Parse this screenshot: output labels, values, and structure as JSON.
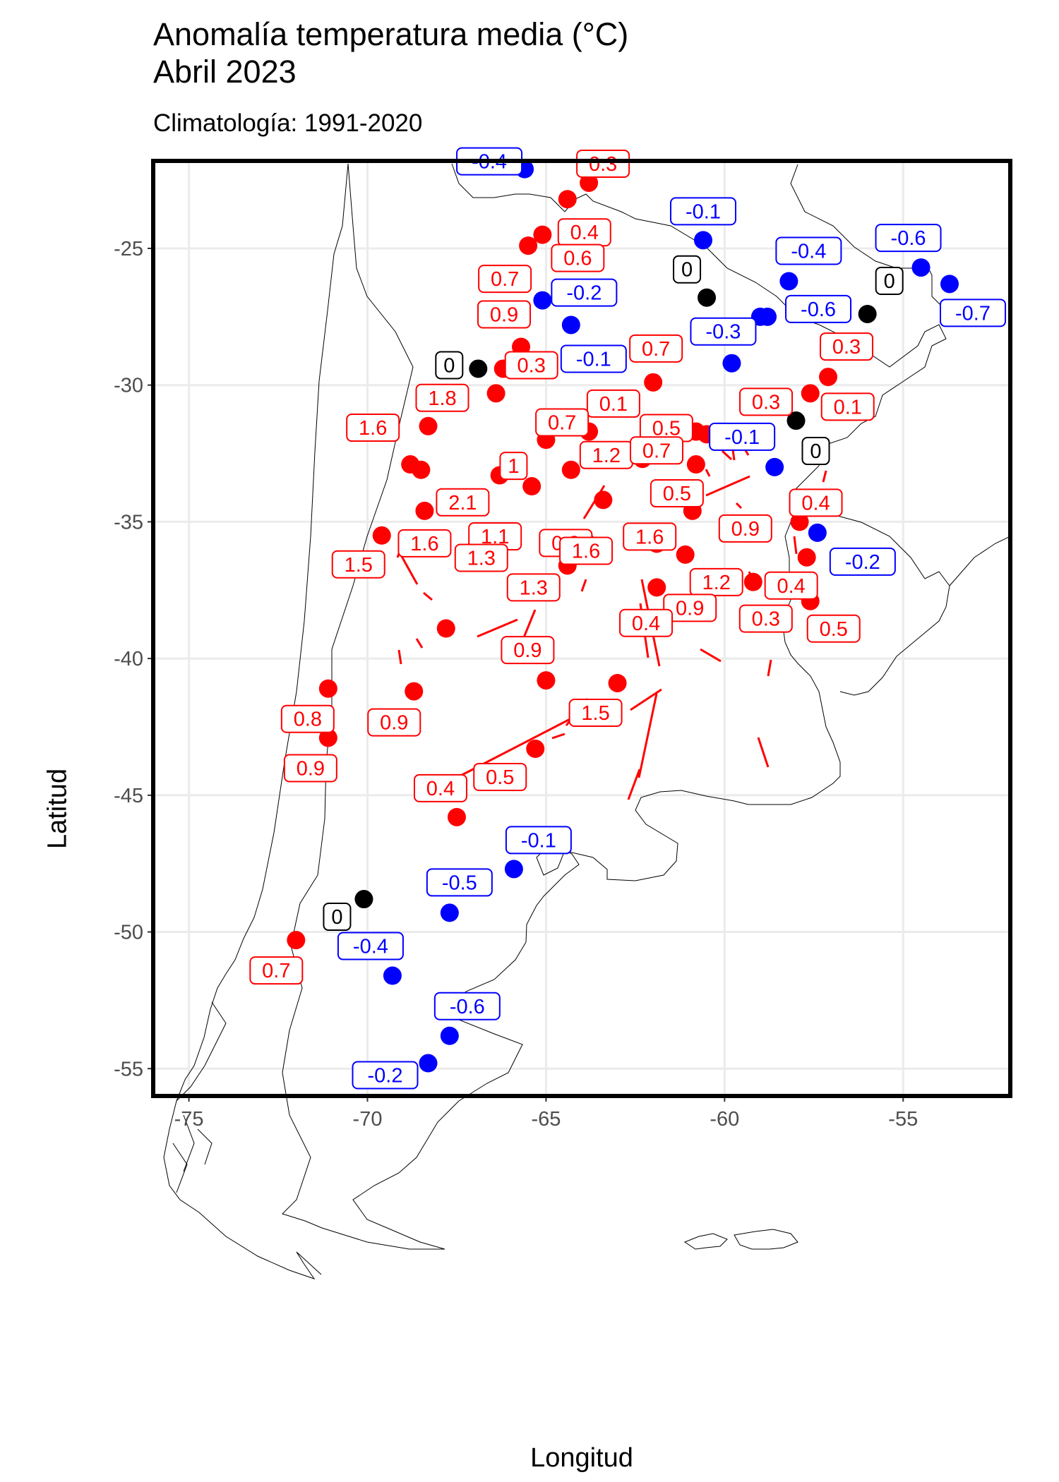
{
  "title_line1": "Anomalía temperatura media (°C)",
  "title_line2": "Abril 2023",
  "subtitle": "Climatología: 1991-2020",
  "xlabel": "Longitud",
  "ylabel": "Latitud",
  "colors": {
    "positive": "#ff0000",
    "negative": "#0000ff",
    "zero": "#000000",
    "grid": "#ebebeb",
    "coast": "#000000"
  },
  "chart_data": {
    "type": "scatter",
    "xlim": [
      -76,
      -52
    ],
    "ylim": [
      -56,
      -21.8
    ],
    "x_ticks": [
      -75,
      -70,
      -65,
      -60,
      -55
    ],
    "y_ticks": [
      -25,
      -30,
      -35,
      -40,
      -45,
      -50,
      -55
    ],
    "x_tick_labels": [
      "-75",
      "-70",
      "-65",
      "-60",
      "-55"
    ],
    "y_tick_labels": [
      "-25",
      "-30",
      "-35",
      "-40",
      "-45",
      "-50",
      "-55"
    ],
    "grid": true,
    "stations": [
      {
        "lon": -65.6,
        "lat": -22.1,
        "label": "-0.4",
        "value": -0.4
      },
      {
        "lon": -63.8,
        "lat": -22.6,
        "label": "0.3",
        "value": 0.3
      },
      {
        "lon": -64.4,
        "lat": -23.2,
        "label": "0.4",
        "value": 0.4
      },
      {
        "lon": -65.5,
        "lat": -24.9,
        "label": "0.7",
        "value": 0.7
      },
      {
        "lon": -65.1,
        "lat": -24.5,
        "label": "0.6",
        "value": 0.6
      },
      {
        "lon": -60.6,
        "lat": -24.7,
        "label": "-0.1",
        "value": -0.1
      },
      {
        "lon": -58.2,
        "lat": -26.2,
        "label": "-0.4",
        "value": -0.4
      },
      {
        "lon": -54.5,
        "lat": -25.7,
        "label": "-0.6",
        "value": -0.6
      },
      {
        "lon": -53.7,
        "lat": -26.3,
        "label": "-0.7",
        "value": -0.7
      },
      {
        "lon": -60.5,
        "lat": -26.8,
        "label": "0",
        "value": 0
      },
      {
        "lon": -56.0,
        "lat": -27.4,
        "label": "0",
        "value": 0
      },
      {
        "lon": -58.8,
        "lat": -27.5,
        "label": "-0.6",
        "value": -0.6
      },
      {
        "lon": -59.0,
        "lat": -27.5,
        "label": "",
        "value": -0.6
      },
      {
        "lon": -65.1,
        "lat": -26.9,
        "label": "-0.2",
        "value": -0.2
      },
      {
        "lon": -64.3,
        "lat": -27.8,
        "label": "-0.1",
        "value": -0.1
      },
      {
        "lon": -65.7,
        "lat": -28.6,
        "label": "0.9",
        "value": 0.9
      },
      {
        "lon": -66.9,
        "lat": -29.4,
        "label": "0",
        "value": 0
      },
      {
        "lon": -66.2,
        "lat": -29.4,
        "label": "0.3",
        "value": 0.3
      },
      {
        "lon": -59.8,
        "lat": -29.2,
        "label": "-0.3",
        "value": -0.3
      },
      {
        "lon": -62.0,
        "lat": -29.9,
        "label": "0.7",
        "value": 0.7
      },
      {
        "lon": -57.1,
        "lat": -29.7,
        "label": "0.3",
        "value": 0.3
      },
      {
        "lon": -57.6,
        "lat": -30.3,
        "label": "0.1",
        "value": 0.1
      },
      {
        "lon": -66.4,
        "lat": -30.3,
        "label": "",
        "value": 0.5
      },
      {
        "lon": -68.3,
        "lat": -31.5,
        "label": "1.8",
        "value": 1.8
      },
      {
        "lon": -64.2,
        "lat": -31.4,
        "label": "0.1",
        "value": 0.1
      },
      {
        "lon": -63.8,
        "lat": -31.7,
        "label": "0.7",
        "value": 0.7
      },
      {
        "lon": -60.8,
        "lat": -31.7,
        "label": "0.5",
        "value": 0.5
      },
      {
        "lon": -60.5,
        "lat": -31.8,
        "label": "0.3",
        "value": 0.3
      },
      {
        "lon": -58.0,
        "lat": -31.3,
        "label": "0",
        "value": 0
      },
      {
        "lon": -65.0,
        "lat": -32.0,
        "label": "1",
        "value": 1.0
      },
      {
        "lon": -68.8,
        "lat": -32.9,
        "label": "1.6",
        "value": 1.6
      },
      {
        "lon": -68.5,
        "lat": -33.1,
        "label": "2.1",
        "value": 2.1
      },
      {
        "lon": -64.3,
        "lat": -33.1,
        "label": "1.2",
        "value": 1.2
      },
      {
        "lon": -62.3,
        "lat": -32.7,
        "label": "0.7",
        "value": 0.7
      },
      {
        "lon": -60.8,
        "lat": -32.9,
        "label": "0.5",
        "value": 0.5
      },
      {
        "lon": -58.6,
        "lat": -33.0,
        "label": "-0.1",
        "value": -0.1
      },
      {
        "lon": -66.3,
        "lat": -33.3,
        "label": "",
        "value": 1.0
      },
      {
        "lon": -65.4,
        "lat": -33.7,
        "label": "1.1",
        "value": 1.1
      },
      {
        "lon": -63.4,
        "lat": -34.2,
        "label": "0.8",
        "value": 0.8
      },
      {
        "lon": -68.4,
        "lat": -34.6,
        "label": "1.6",
        "value": 1.6
      },
      {
        "lon": -60.9,
        "lat": -34.6,
        "label": "0.9",
        "value": 0.9
      },
      {
        "lon": -57.9,
        "lat": -35.0,
        "label": "0.4",
        "value": 0.4
      },
      {
        "lon": -57.4,
        "lat": -35.4,
        "label": "-0.2",
        "value": -0.2
      },
      {
        "lon": -69.6,
        "lat": -35.5,
        "label": "1.5",
        "value": 1.5
      },
      {
        "lon": -63.9,
        "lat": -35.7,
        "label": "1.6",
        "value": 1.6
      },
      {
        "lon": -61.9,
        "lat": -35.8,
        "label": "1.6",
        "value": 1.6
      },
      {
        "lon": -64.4,
        "lat": -36.6,
        "label": "1.3",
        "value": 1.3
      },
      {
        "lon": -61.1,
        "lat": -36.2,
        "label": "1.2",
        "value": 1.2
      },
      {
        "lon": -57.7,
        "lat": -36.3,
        "label": "0.4",
        "value": 0.4
      },
      {
        "lon": -59.2,
        "lat": -37.2,
        "label": "0.3",
        "value": 0.3
      },
      {
        "lon": -61.9,
        "lat": -37.4,
        "label": "0.9",
        "value": 0.9
      },
      {
        "lon": -57.6,
        "lat": -37.9,
        "label": "0.5",
        "value": 0.5
      },
      {
        "lon": -67.8,
        "lat": -38.9,
        "label": "1.3",
        "value": 1.3
      },
      {
        "lon": -62.2,
        "lat": -38.7,
        "label": "0.4",
        "value": 0.4
      },
      {
        "lon": -65.0,
        "lat": -40.8,
        "label": "0.9",
        "value": 0.9
      },
      {
        "lon": -63.0,
        "lat": -40.9,
        "label": "1.5",
        "value": 1.5
      },
      {
        "lon": -68.7,
        "lat": -41.2,
        "label": "0.9",
        "value": 0.9
      },
      {
        "lon": -71.1,
        "lat": -41.1,
        "label": "0.8",
        "value": 0.8
      },
      {
        "lon": -71.1,
        "lat": -42.9,
        "label": "0.9",
        "value": 0.9
      },
      {
        "lon": -65.3,
        "lat": -43.3,
        "label": "0.5",
        "value": 0.5
      },
      {
        "lon": -67.5,
        "lat": -45.8,
        "label": "0.4",
        "value": 0.4
      },
      {
        "lon": -65.9,
        "lat": -47.7,
        "label": "-0.1",
        "value": -0.1
      },
      {
        "lon": -67.7,
        "lat": -49.3,
        "label": "-0.5",
        "value": -0.5
      },
      {
        "lon": -70.1,
        "lat": -48.8,
        "label": "0",
        "value": 0
      },
      {
        "lon": -72.0,
        "lat": -50.3,
        "label": "0.7",
        "value": 0.7
      },
      {
        "lon": -69.3,
        "lat": -51.6,
        "label": "-0.4",
        "value": -0.4
      },
      {
        "lon": -67.7,
        "lat": -53.8,
        "label": "-0.6",
        "value": -0.6
      },
      {
        "lon": -68.3,
        "lat": -54.8,
        "label": "-0.2",
        "value": -0.2
      }
    ]
  }
}
